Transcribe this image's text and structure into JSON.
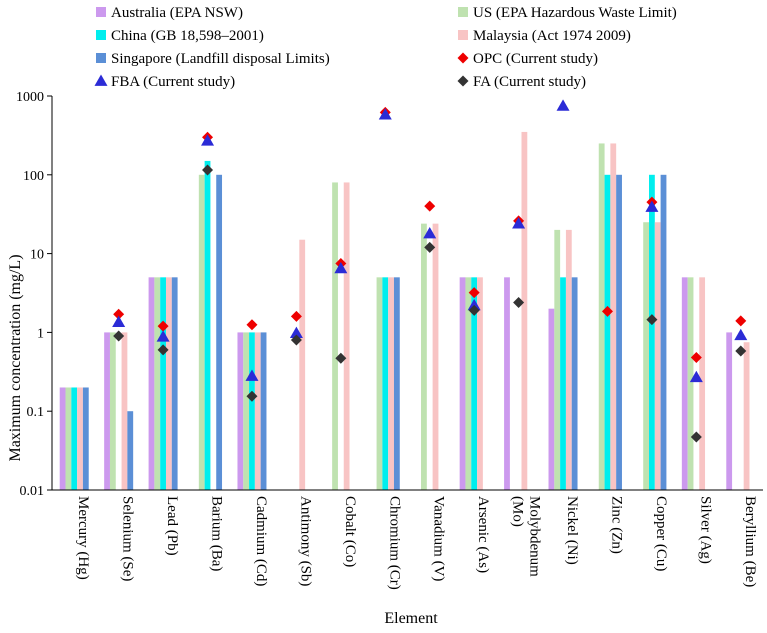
{
  "chart_data": {
    "type": "bar",
    "xlabel": "Element",
    "ylabel": "Maximum concentration (mg/L)",
    "yscale": "log",
    "ylim": [
      0.01,
      1000
    ],
    "y_ticks": [
      "0.01",
      "0.1",
      "1",
      "10",
      "100",
      "1000"
    ],
    "categories": [
      "Mercury (Hg)",
      "Selenium (Se)",
      "Lead (Pb)",
      "Barium (Ba)",
      "Cadmium (Cd)",
      "Antimony (Sb)",
      "Cobalt (Co)",
      "Chromium (Cr)",
      "Vanadium (V)",
      "Arsenic (As)",
      "Molybdenum (Mo)",
      "Nickel (Ni)",
      "Zinc (Zn)",
      "Copper (Cu)",
      "Silver (Ag)",
      "Beryllium (Be)"
    ],
    "bar_series": [
      {
        "name": "Australia (EPA NSW)",
        "color": "#cc99ee",
        "values": [
          0.2,
          1,
          5,
          null,
          1,
          null,
          null,
          null,
          null,
          5,
          5,
          2,
          null,
          null,
          5,
          1
        ]
      },
      {
        "name": "US (EPA Hazardous Waste Limit)",
        "color": "#bfe2b0",
        "values": [
          0.2,
          1,
          5,
          100,
          1,
          null,
          80,
          5,
          24,
          5,
          null,
          20,
          250,
          25,
          5,
          null
        ]
      },
      {
        "name": "China (GB 18,598–2001)",
        "color": "#00eeee",
        "values": [
          0.2,
          null,
          5,
          150,
          1,
          null,
          null,
          5,
          null,
          5,
          null,
          5,
          100,
          100,
          null,
          null
        ]
      },
      {
        "name": "Malaysia (Act 1974 2009)",
        "color": "#f8c4c4",
        "values": [
          0.2,
          1,
          5,
          null,
          1,
          15,
          80,
          5,
          24,
          5,
          350,
          20,
          250,
          25,
          5,
          0.75
        ]
      },
      {
        "name": "Singapore (Landfill disposal Limits)",
        "color": "#5b8fd6",
        "values": [
          0.2,
          0.1,
          5,
          100,
          1,
          null,
          null,
          5,
          null,
          null,
          null,
          5,
          100,
          100,
          null,
          null
        ]
      }
    ],
    "marker_series": [
      {
        "name": "OPC (Current study)",
        "color": "#ee0000",
        "marker": "diamond",
        "values": [
          null,
          1.7,
          1.2,
          300,
          1.25,
          1.6,
          7.5,
          620,
          40,
          3.2,
          26,
          null,
          1.85,
          45,
          0.48,
          1.4
        ]
      },
      {
        "name": "FBA (Current study)",
        "color": "#2b2bd6",
        "marker": "triangle",
        "values": [
          null,
          1.35,
          0.88,
          270,
          0.28,
          0.98,
          6.5,
          580,
          18,
          2.2,
          24,
          750,
          null,
          39,
          0.27,
          0.92
        ]
      },
      {
        "name": "FA (Current study)",
        "color": "#333333",
        "marker": "diamond",
        "values": [
          null,
          0.9,
          0.6,
          115,
          0.155,
          0.8,
          0.47,
          null,
          12,
          1.9,
          2.4,
          null,
          null,
          1.45,
          0.047,
          0.58
        ]
      }
    ],
    "legend_order": [
      [
        0,
        1
      ],
      [
        2,
        3
      ],
      [
        4,
        "m0"
      ],
      [
        "m1",
        "m2"
      ]
    ],
    "legend_position": "top",
    "grid": false
  }
}
